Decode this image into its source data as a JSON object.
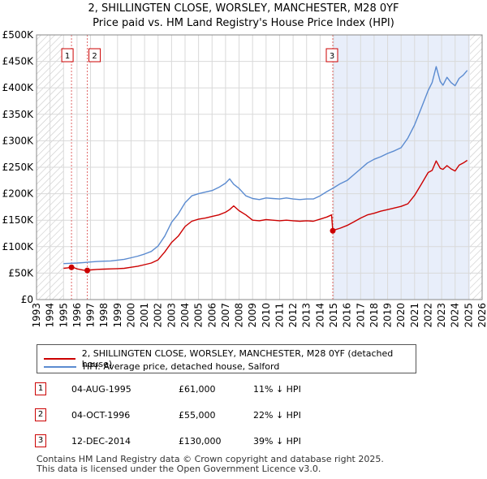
{
  "chart_data": {
    "type": "line",
    "title_line1": "2, SHILLINGTEN CLOSE, WORSLEY, MANCHESTER, M28 0YF",
    "title_line2": "Price paid vs. HM Land Registry's House Price Index (HPI)",
    "xlim": [
      1993,
      2026
    ],
    "ylim": [
      0,
      500000
    ],
    "x_ticks": [
      1993,
      1994,
      1995,
      1996,
      1997,
      1998,
      1999,
      2000,
      2001,
      2002,
      2003,
      2004,
      2005,
      2006,
      2007,
      2008,
      2009,
      2010,
      2011,
      2012,
      2013,
      2014,
      2015,
      2016,
      2017,
      2018,
      2019,
      2020,
      2021,
      2022,
      2023,
      2024,
      2025,
      2026
    ],
    "y_ticks": [
      {
        "value": 0,
        "label": "£0"
      },
      {
        "value": 50000,
        "label": "£50K"
      },
      {
        "value": 100000,
        "label": "£100K"
      },
      {
        "value": 150000,
        "label": "£150K"
      },
      {
        "value": 200000,
        "label": "£200K"
      },
      {
        "value": 250000,
        "label": "£250K"
      },
      {
        "value": 300000,
        "label": "£300K"
      },
      {
        "value": 350000,
        "label": "£350K"
      },
      {
        "value": 400000,
        "label": "£400K"
      },
      {
        "value": 450000,
        "label": "£450K"
      },
      {
        "value": 500000,
        "label": "£500K"
      }
    ],
    "hatch_ranges": [
      [
        1993,
        1995.0
      ],
      [
        2025.1,
        2026
      ]
    ],
    "shade_range": [
      2014.95,
      2025.1
    ],
    "series": [
      {
        "name": "2, SHILLINGTEN CLOSE, WORSLEY, MANCHESTER, M28 0YF (detached house)",
        "color": "#cc0000",
        "x": [
          1995.0,
          1995.3,
          1995.59,
          1995.8,
          1996.0,
          1996.3,
          1996.5,
          1996.76,
          1997.0,
          1997.5,
          1998.0,
          1998.5,
          1999.0,
          1999.5,
          2000.0,
          2000.5,
          2001.0,
          2001.5,
          2002.0,
          2002.5,
          2003.0,
          2003.5,
          2004.0,
          2004.5,
          2005.0,
          2005.5,
          2006.0,
          2006.5,
          2007.0,
          2007.3,
          2007.6,
          2008.0,
          2008.5,
          2009.0,
          2009.5,
          2010.0,
          2010.5,
          2011.0,
          2011.5,
          2012.0,
          2012.5,
          2013.0,
          2013.5,
          2014.0,
          2014.5,
          2014.85,
          2014.94,
          2015.0,
          2015.5,
          2016.0,
          2016.5,
          2017.0,
          2017.5,
          2018.0,
          2018.5,
          2019.0,
          2019.5,
          2020.0,
          2020.5,
          2021.0,
          2021.5,
          2022.0,
          2022.3,
          2022.6,
          2022.9,
          2023.1,
          2023.4,
          2023.7,
          2024.0,
          2024.3,
          2024.6,
          2024.9
        ],
        "y": [
          59000,
          60000,
          61000,
          60000,
          58000,
          56500,
          55500,
          55000,
          56000,
          57000,
          57500,
          58000,
          58500,
          59000,
          61000,
          63000,
          66000,
          69000,
          75000,
          90000,
          108000,
          120000,
          138000,
          148000,
          152000,
          154000,
          157000,
          160000,
          165000,
          170000,
          177000,
          168000,
          160000,
          150000,
          149000,
          151000,
          150000,
          149000,
          150000,
          149000,
          148000,
          149000,
          148000,
          152000,
          156000,
          160000,
          130000,
          131000,
          135000,
          140000,
          147000,
          154000,
          160000,
          163000,
          167000,
          170000,
          173000,
          176000,
          181000,
          197000,
          218000,
          240000,
          244000,
          262000,
          248000,
          246000,
          253000,
          247000,
          243000,
          254000,
          258000,
          263000
        ]
      },
      {
        "name": "HPI: Average price, detached house, Salford",
        "color": "#5b8bd0",
        "x": [
          1995.0,
          1995.5,
          1996.0,
          1996.5,
          1997.0,
          1997.5,
          1998.0,
          1998.5,
          1999.0,
          1999.5,
          2000.0,
          2000.5,
          2001.0,
          2001.5,
          2002.0,
          2002.5,
          2003.0,
          2003.5,
          2004.0,
          2004.5,
          2005.0,
          2005.5,
          2006.0,
          2006.5,
          2007.0,
          2007.3,
          2007.6,
          2008.0,
          2008.5,
          2009.0,
          2009.5,
          2010.0,
          2010.5,
          2011.0,
          2011.5,
          2012.0,
          2012.5,
          2013.0,
          2013.5,
          2014.0,
          2014.5,
          2015.0,
          2015.5,
          2016.0,
          2016.5,
          2017.0,
          2017.5,
          2018.0,
          2018.5,
          2019.0,
          2019.5,
          2020.0,
          2020.5,
          2021.0,
          2021.5,
          2022.0,
          2022.3,
          2022.6,
          2022.9,
          2023.1,
          2023.4,
          2023.7,
          2024.0,
          2024.3,
          2024.6,
          2024.9
        ],
        "y": [
          68000,
          68500,
          69000,
          70000,
          71000,
          72000,
          72500,
          73000,
          74500,
          76000,
          79000,
          82000,
          86000,
          91000,
          101000,
          120000,
          146000,
          162000,
          183000,
          196000,
          200000,
          203000,
          206000,
          212000,
          220000,
          228000,
          218000,
          210000,
          196000,
          191000,
          189000,
          192000,
          191000,
          190000,
          192000,
          190000,
          189000,
          190000,
          190000,
          196000,
          204000,
          211000,
          219000,
          225000,
          236000,
          247000,
          258000,
          265000,
          270000,
          276000,
          281000,
          287000,
          305000,
          330000,
          362000,
          395000,
          410000,
          440000,
          412000,
          405000,
          420000,
          410000,
          404000,
          418000,
          424000,
          433000
        ]
      }
    ],
    "sales": [
      {
        "id": "1",
        "x": 1995.59,
        "price": 61000,
        "date": "04-AUG-1995",
        "price_label": "£61,000",
        "hpi_label": "11% ↓ HPI"
      },
      {
        "id": "2",
        "x": 1996.76,
        "price": 55000,
        "date": "04-OCT-1996",
        "price_label": "£55,000",
        "hpi_label": "22% ↓ HPI"
      },
      {
        "id": "3",
        "x": 2014.94,
        "price": 130000,
        "date": "12-DEC-2014",
        "price_label": "£130,000",
        "hpi_label": "39% ↓ HPI"
      }
    ]
  },
  "legend": {
    "property_label": "2, SHILLINGTEN CLOSE, WORSLEY, MANCHESTER, M28 0YF (detached house)",
    "hpi_label": "HPI: Average price, detached house, Salford"
  },
  "footer": {
    "line1": "Contains HM Land Registry data © Crown copyright and database right 2025.",
    "line2": "This data is licensed under the Open Government Licence v3.0."
  },
  "colors": {
    "property": "#cc0000",
    "hpi": "#5b8bd0",
    "shade": "#e8eefa",
    "grid": "#d9d9d9"
  }
}
